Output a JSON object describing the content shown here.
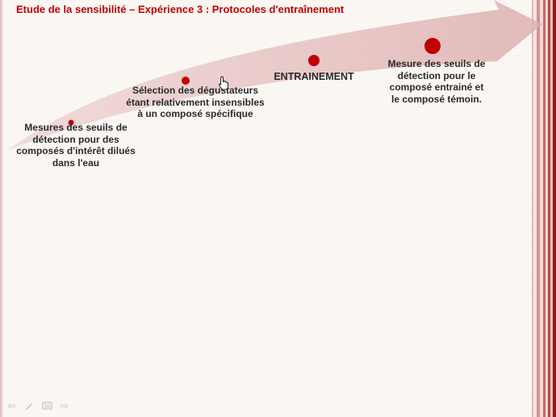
{
  "slide": {
    "title": "Etude de la sensibilité – Expérience 3 : Protocoles d'entraînement",
    "steps": [
      {
        "label": "Mesures des seuils de\ndétection pour des\ncomposés d'intérêt dilués\ndans l'eau"
      },
      {
        "label": "Sélection des dégustateurs\nétant relativement insensibles\nà un composé spécifique"
      },
      {
        "label": "ENTRAINEMENT"
      },
      {
        "label": "Mesure des seuils de\ndétection pour le\ncomposé entrainé et\nle composé témoin."
      }
    ]
  },
  "colors": {
    "title": "#c00000",
    "arrow": "#e3b8b8",
    "dot": "#c00000",
    "frame": "#8d1d1d"
  },
  "nav": {
    "prev_icon": "arrow-left-icon",
    "pen_icon": "pen-icon",
    "menu_icon": "slide-menu-icon",
    "next_icon": "arrow-right-icon"
  }
}
